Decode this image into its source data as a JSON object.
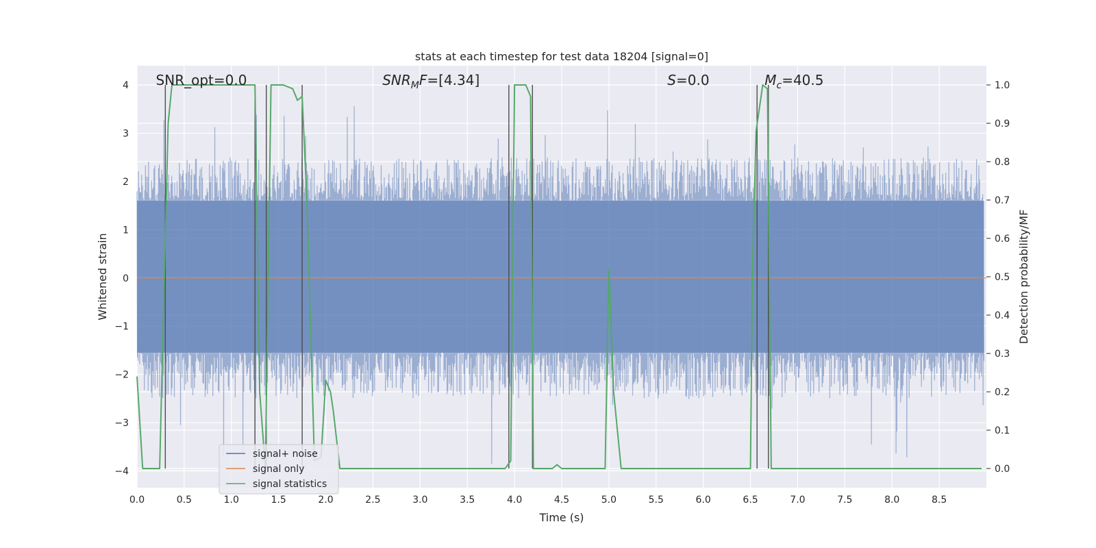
{
  "chart_data": {
    "type": "line",
    "title": "stats at each timestep for test data 18204 [signal=0]",
    "xlabel": "Time (s)",
    "ylabel_left": "Whitened strain",
    "ylabel_right": "Detection probability/MF",
    "xlim": [
      0.0,
      9.0
    ],
    "ylim_left": [
      -4.35,
      4.4
    ],
    "ylim_right": [
      -0.05,
      1.05
    ],
    "grid": true,
    "x_ticks": [
      0.0,
      0.5,
      1.0,
      1.5,
      2.0,
      2.5,
      3.0,
      3.5,
      4.0,
      4.5,
      5.0,
      5.5,
      6.0,
      6.5,
      7.0,
      7.5,
      8.0,
      8.5
    ],
    "x_tick_labels": [
      "0.0",
      "0.5",
      "1.0",
      "1.5",
      "2.0",
      "2.5",
      "3.0",
      "3.5",
      "4.0",
      "4.5",
      "5.0",
      "5.5",
      "6.0",
      "6.5",
      "7.0",
      "7.5",
      "8.0",
      "8.5"
    ],
    "y_left_ticks": [
      -4,
      -3,
      -2,
      -1,
      0,
      1,
      2,
      3,
      4
    ],
    "y_left_tick_labels": [
      "−4",
      "−3",
      "−2",
      "−1",
      "0",
      "1",
      "2",
      "3",
      "4"
    ],
    "y_right_ticks": [
      0.0,
      0.1,
      0.2,
      0.3,
      0.4,
      0.5,
      0.6,
      0.7,
      0.8,
      0.9,
      1.0
    ],
    "y_right_tick_labels": [
      "0.0",
      "0.1",
      "0.2",
      "0.3",
      "0.4",
      "0.5",
      "0.6",
      "0.7",
      "0.8",
      "0.9",
      "1.0"
    ],
    "annotations": [
      {
        "plain": "SNR_opt=0.0",
        "x": 0.2
      },
      {
        "it": "SNR",
        "sub": "M",
        "it2": "F",
        "rest": "=[4.34]",
        "x": 2.6
      },
      {
        "it": "S",
        "rest": "=0.0",
        "x": 5.62
      },
      {
        "it": "M",
        "sub": "c",
        "rest": "=40.5",
        "x": 6.65
      }
    ],
    "series": [
      {
        "name": "signal+ noise",
        "color": "#4c72b0",
        "axis": "left",
        "kind": "noise",
        "envelope": {
          "upper_typical": 2.5,
          "upper_max": 3.6,
          "lower_typical": -2.5,
          "lower_min": -3.9,
          "band": [
            -1.55,
            1.6
          ]
        }
      },
      {
        "name": "signal only",
        "color": "#dd8452",
        "axis": "left",
        "x": [
          0.0,
          9.0
        ],
        "y": [
          0.0,
          0.0
        ]
      },
      {
        "name": "signal statistics",
        "color": "#55a868",
        "axis": "right",
        "x": [
          0.0,
          0.06,
          0.15,
          0.24,
          0.3,
          0.33,
          0.37,
          0.45,
          1.0,
          1.25,
          1.3,
          1.36,
          1.42,
          1.55,
          1.65,
          1.7,
          1.75,
          1.8,
          1.88,
          1.95,
          2.0,
          2.05,
          2.08,
          2.15,
          2.3,
          3.0,
          3.9,
          3.93,
          3.96,
          4.0,
          4.12,
          4.17,
          4.2,
          4.25,
          4.3,
          4.4,
          4.45,
          4.5,
          4.7,
          4.75,
          4.9,
          4.96,
          5.0,
          5.05,
          5.13,
          5.5,
          6.0,
          6.5,
          6.52,
          6.56,
          6.63,
          6.68,
          6.72,
          6.8,
          8.0,
          8.95
        ],
        "y": [
          0.24,
          0.0,
          0.0,
          0.0,
          0.6,
          0.9,
          1.0,
          1.0,
          1.0,
          1.0,
          0.2,
          0.0,
          1.0,
          1.0,
          0.99,
          0.96,
          0.97,
          0.7,
          0.02,
          0.03,
          0.23,
          0.2,
          0.15,
          0.0,
          0.0,
          0.0,
          0.0,
          0.01,
          0.02,
          1.0,
          1.0,
          0.97,
          0.0,
          0.0,
          0.0,
          0.0,
          0.01,
          0.0,
          0.0,
          0.0,
          0.0,
          0.0,
          0.52,
          0.2,
          0.0,
          0.0,
          0.0,
          0.0,
          0.5,
          0.88,
          1.0,
          0.99,
          0.0,
          0.0,
          0.0,
          0.0
        ]
      }
    ],
    "vertical_markers": {
      "color": "#4d4d4d",
      "x": [
        0.3,
        1.25,
        1.37,
        1.75,
        3.94,
        4.19,
        6.57,
        6.69
      ]
    },
    "legend_location": "lower-left"
  }
}
